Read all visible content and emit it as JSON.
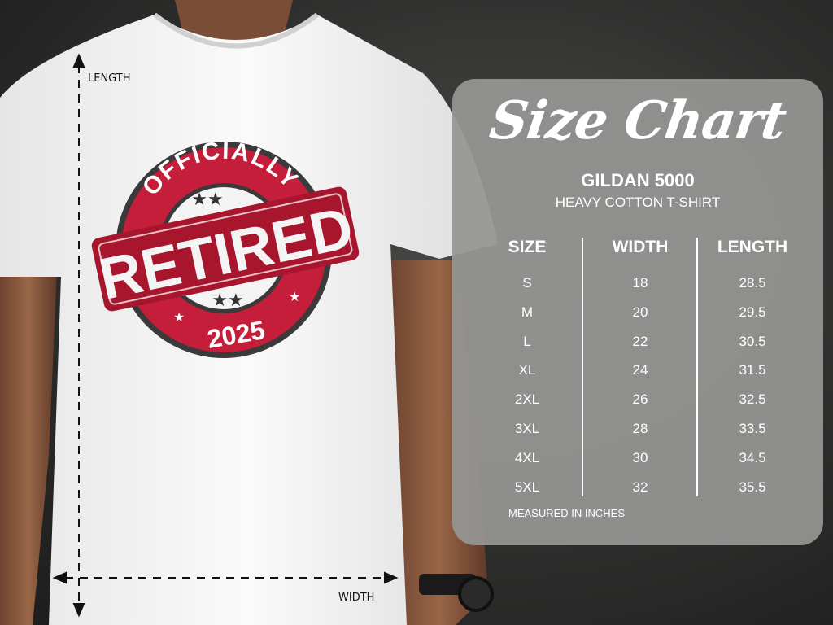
{
  "measurements": {
    "length_label": "LENGTH",
    "width_label": "WIDTH"
  },
  "graphic": {
    "top_text": "OFFICIALLY",
    "main_text": "RETIRED",
    "year": "2025",
    "colors": {
      "red": "#c41e3a",
      "dark": "#3a3a3a"
    }
  },
  "size_chart": {
    "title": "Size Chart",
    "brand": "GILDAN 5000",
    "subtitle": "HEAVY COTTON T-SHIRT",
    "headers": [
      "SIZE",
      "WIDTH",
      "LENGTH"
    ],
    "rows": [
      [
        "S",
        "18",
        "28.5"
      ],
      [
        "M",
        "20",
        "29.5"
      ],
      [
        "L",
        "22",
        "30.5"
      ],
      [
        "XL",
        "24",
        "31.5"
      ],
      [
        "2XL",
        "26",
        "32.5"
      ],
      [
        "3XL",
        "28",
        "33.5"
      ],
      [
        "4XL",
        "30",
        "34.5"
      ],
      [
        "5XL",
        "32",
        "35.5"
      ]
    ],
    "note": "MEASURED IN INCHES"
  }
}
